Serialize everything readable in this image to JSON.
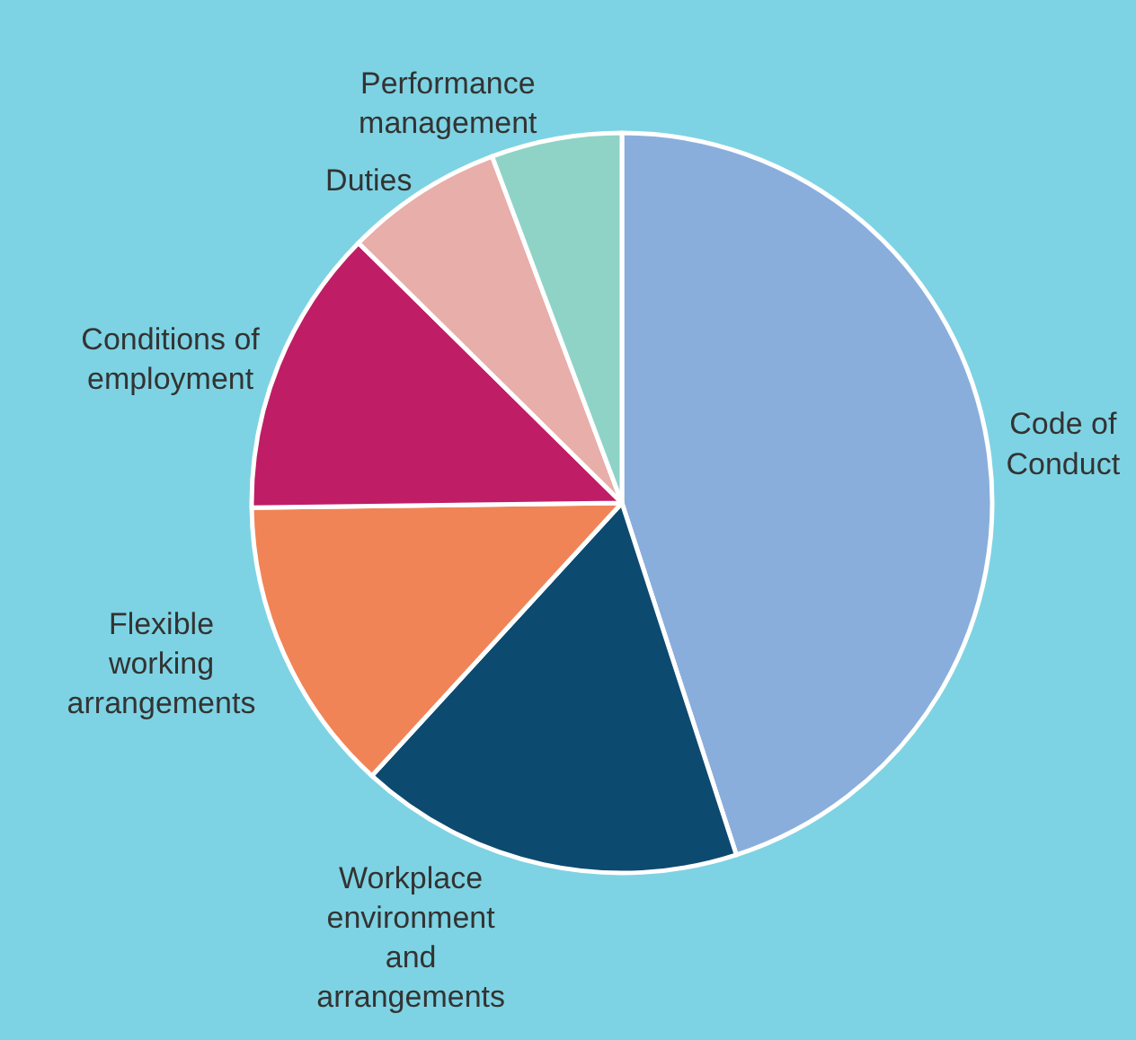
{
  "chart_data": {
    "type": "pie",
    "categories": [
      "Code of Conduct",
      "Workplace environment and arrangements",
      "Flexible working arrangements",
      "Conditions of employment",
      "Duties",
      "Performance management"
    ],
    "values": [
      45,
      16.8,
      13,
      12.6,
      6.9,
      5.7
    ],
    "colors": [
      "#8aaedc",
      "#0d4a70",
      "#f08457",
      "#bf1e66",
      "#e8aeaa",
      "#8fd3c7"
    ],
    "legend": false
  }
}
